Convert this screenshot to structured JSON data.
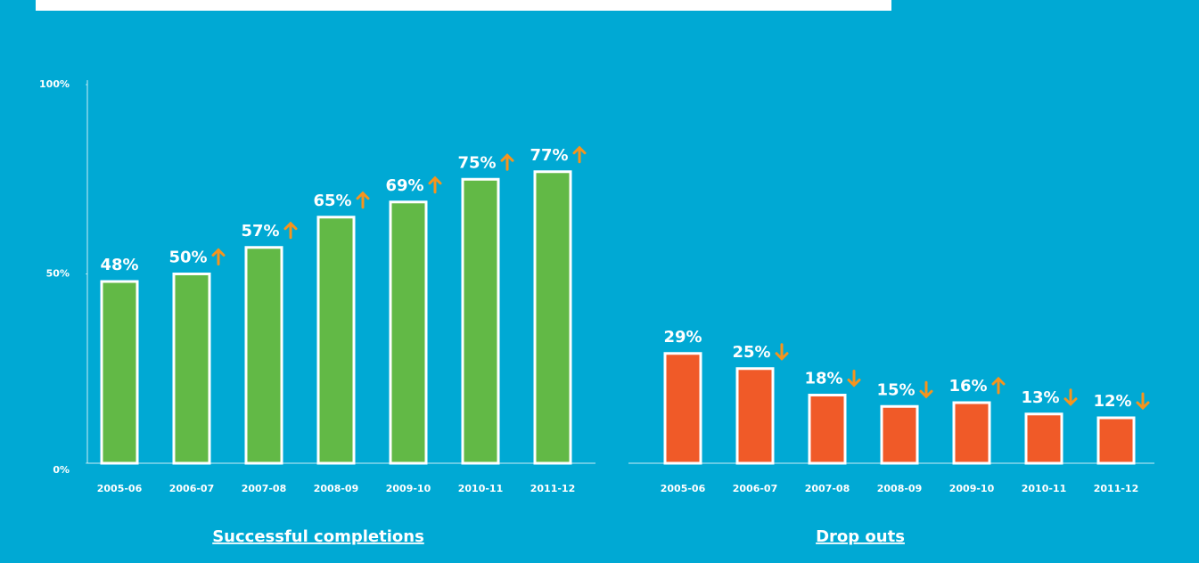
{
  "chart_data": [
    {
      "type": "bar",
      "title": "Successful completions",
      "categories": [
        "2005-06",
        "2006-07",
        "2007-08",
        "2008-09",
        "2009-10",
        "2010-11",
        "2011-12"
      ],
      "values": [
        48,
        50,
        57,
        65,
        69,
        75,
        77
      ],
      "value_labels": [
        "48%",
        "50%",
        "57%",
        "65%",
        "69%",
        "75%",
        "77%"
      ],
      "color": "#62b946",
      "ylim": [
        0,
        100
      ],
      "yticks": [
        {
          "value": 0,
          "label": "0%"
        },
        {
          "value": 50,
          "label": "50%"
        },
        {
          "value": 100,
          "label": "100%"
        }
      ]
    },
    {
      "type": "bar",
      "title": "Drop outs",
      "categories": [
        "2005-06",
        "2006-07",
        "2007-08",
        "2008-09",
        "2009-10",
        "2010-11",
        "2011-12"
      ],
      "values": [
        29,
        25,
        18,
        15,
        16,
        13,
        12
      ],
      "value_labels": [
        "29%",
        "25%",
        "18%",
        "15%",
        "16%",
        "13%",
        "12%"
      ],
      "color": "#f05a28",
      "ylim": [
        0,
        100
      ]
    }
  ]
}
